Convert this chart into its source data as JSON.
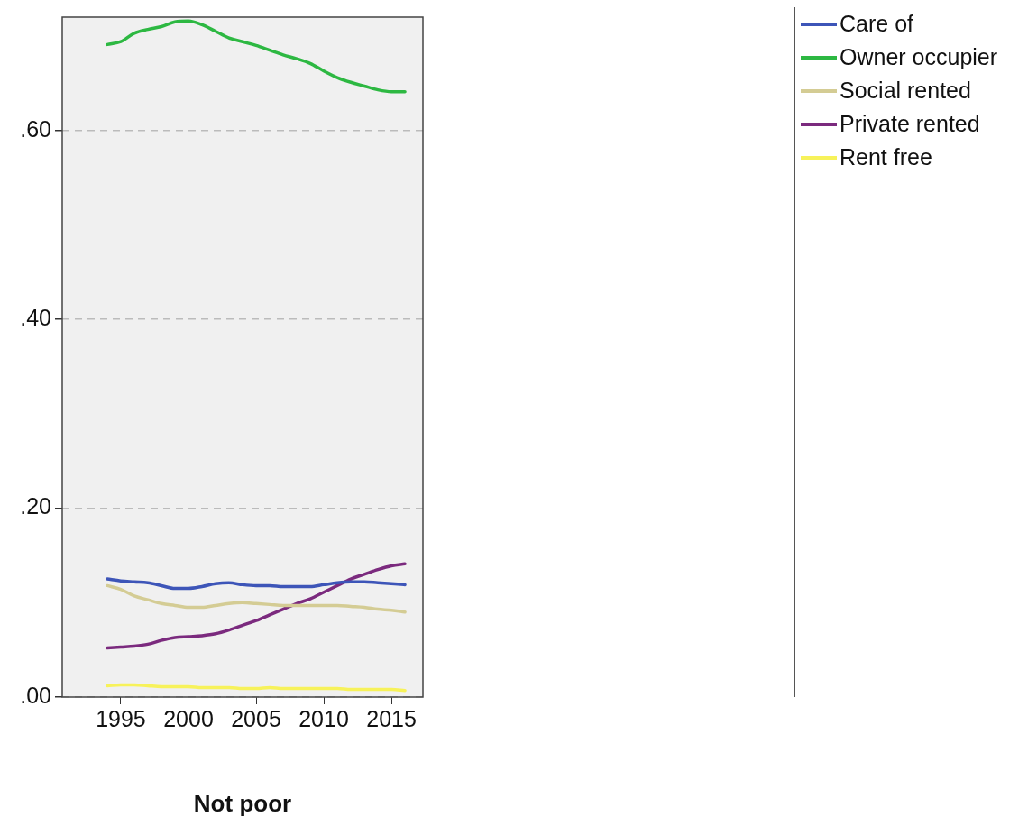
{
  "chart_data": {
    "type": "line",
    "xlabel": "Not poor",
    "x": [
      1994,
      1995,
      1996,
      1997,
      1998,
      1999,
      2000,
      2001,
      2002,
      2003,
      2004,
      2005,
      2006,
      2007,
      2008,
      2009,
      2010,
      2011,
      2012,
      2013,
      2014,
      2015,
      2016
    ],
    "series": [
      {
        "name": "Care of",
        "color": "#3d55b8",
        "values": [
          0.125,
          0.123,
          0.122,
          0.121,
          0.118,
          0.115,
          0.115,
          0.117,
          0.12,
          0.121,
          0.119,
          0.118,
          0.118,
          0.117,
          0.117,
          0.117,
          0.119,
          0.121,
          0.122,
          0.122,
          0.121,
          0.12,
          0.119
        ]
      },
      {
        "name": "Owner occupier",
        "color": "#2db842",
        "values": [
          0.691,
          0.694,
          0.703,
          0.707,
          0.71,
          0.715,
          0.716,
          0.712,
          0.705,
          0.698,
          0.694,
          0.69,
          0.685,
          0.68,
          0.676,
          0.671,
          0.663,
          0.656,
          0.651,
          0.647,
          0.643,
          0.641,
          0.641
        ]
      },
      {
        "name": "Social rented",
        "color": "#d4cc94",
        "values": [
          0.118,
          0.114,
          0.107,
          0.103,
          0.099,
          0.097,
          0.095,
          0.095,
          0.097,
          0.099,
          0.1,
          0.099,
          0.098,
          0.097,
          0.097,
          0.097,
          0.097,
          0.097,
          0.096,
          0.095,
          0.093,
          0.092,
          0.09
        ]
      },
      {
        "name": "Private rented",
        "color": "#7b2a7e",
        "values": [
          0.052,
          0.053,
          0.054,
          0.056,
          0.06,
          0.063,
          0.064,
          0.065,
          0.067,
          0.071,
          0.076,
          0.081,
          0.087,
          0.093,
          0.099,
          0.104,
          0.111,
          0.118,
          0.125,
          0.13,
          0.135,
          0.139,
          0.141
        ]
      },
      {
        "name": "Rent free",
        "color": "#f7f25a",
        "values": [
          0.012,
          0.013,
          0.013,
          0.012,
          0.011,
          0.011,
          0.011,
          0.01,
          0.01,
          0.01,
          0.009,
          0.009,
          0.01,
          0.009,
          0.009,
          0.009,
          0.009,
          0.009,
          0.008,
          0.008,
          0.008,
          0.008,
          0.007
        ]
      }
    ],
    "xlim": [
      1990.67,
      2017.33
    ],
    "xticks": [
      1995,
      2000,
      2005,
      2010,
      2015
    ],
    "ylim": [
      0,
      0.72
    ],
    "yticks": [
      {
        "value": 0,
        "label": ".00"
      },
      {
        "value": 0.2,
        "label": ".20"
      },
      {
        "value": 0.4,
        "label": ".40"
      },
      {
        "value": 0.6,
        "label": ".60"
      }
    ],
    "grid": "y",
    "legend": "top right",
    "marker": "none",
    "line_style": "solid"
  }
}
